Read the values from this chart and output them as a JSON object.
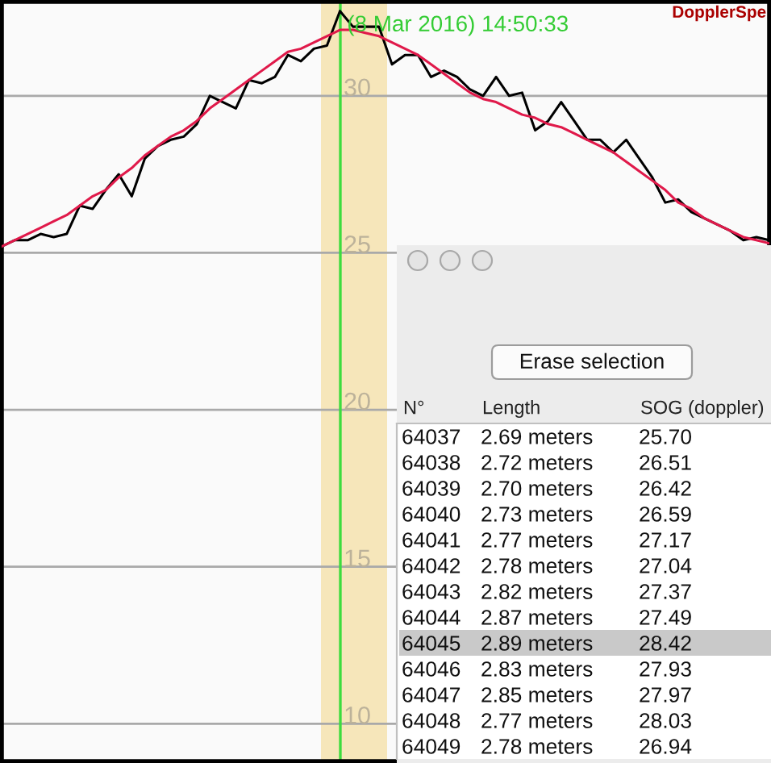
{
  "chart_data": [
    {
      "type": "line",
      "title": "DopplerSpe",
      "annotations": [
        "(8 Mar 2016) 14:50:33"
      ],
      "categories": [
        null,
        null,
        null,
        null,
        null,
        null,
        null,
        null,
        null,
        null,
        null,
        null,
        null,
        null,
        null,
        null,
        null,
        null,
        null,
        null,
        null,
        null,
        null,
        null,
        null,
        null,
        null,
        null,
        null,
        null,
        null,
        null,
        null,
        null,
        null,
        null,
        null,
        null,
        null,
        null,
        null,
        null,
        null,
        null,
        null,
        null,
        null,
        null,
        null,
        null,
        null,
        null,
        null,
        null,
        null,
        null,
        null,
        null,
        null,
        null
      ],
      "series": [
        {
          "color": "#000000",
          "values": [
            25.2,
            25.4,
            25.4,
            25.6,
            25.5,
            25.6,
            26.5,
            26.4,
            27.0,
            27.5,
            26.8,
            28.0,
            28.4,
            28.6,
            28.7,
            29.1,
            30.0,
            29.8,
            29.6,
            30.5,
            30.4,
            30.6,
            31.3,
            31.1,
            31.5,
            31.6,
            32.7,
            32.2,
            32.2,
            32.2,
            31.0,
            31.3,
            31.3,
            30.6,
            30.8,
            30.6,
            30.2,
            30.0,
            30.6,
            30.0,
            30.1,
            28.9,
            29.2,
            29.8,
            29.2,
            28.6,
            28.6,
            28.2,
            28.6,
            28.0,
            27.4,
            26.6,
            26.7,
            26.3,
            26.1,
            25.9,
            25.7,
            25.4,
            25.5,
            25.4
          ]
        },
        {
          "color": "#e0194a",
          "values": [
            25.2,
            25.4,
            25.6,
            25.8,
            26.0,
            26.2,
            26.5,
            26.8,
            27.0,
            27.4,
            27.7,
            28.1,
            28.4,
            28.7,
            28.9,
            29.2,
            29.6,
            29.9,
            30.2,
            30.5,
            30.8,
            31.1,
            31.4,
            31.5,
            31.7,
            31.9,
            32.1,
            32.1,
            32.0,
            31.9,
            31.7,
            31.5,
            31.3,
            31.0,
            30.7,
            30.4,
            30.1,
            29.9,
            29.8,
            29.6,
            29.4,
            29.3,
            29.1,
            29.0,
            28.8,
            28.6,
            28.4,
            28.2,
            27.9,
            27.6,
            27.3,
            27.0,
            26.6,
            26.4,
            26.1,
            25.9,
            25.7,
            25.5,
            25.4,
            25.3
          ]
        }
      ],
      "ylim": [
        8.8,
        33.0
      ],
      "yticks": [
        10,
        15,
        20,
        25,
        30
      ],
      "grid": "y",
      "tick_labels": "y"
    },
    {
      "type": "heatmap",
      "annotations": [
        "Erase selection"
      ],
      "ylabel": "N°",
      "categories": [
        "Length",
        "SOG (doppler)"
      ],
      "y_categories": [
        "64037",
        "64038",
        "64039",
        "64040",
        "64041",
        "64042",
        "64043",
        "64044",
        "64045",
        "64046",
        "64047",
        "64048",
        "64049"
      ],
      "cells": [
        [
          null,
          null
        ],
        [
          null,
          null
        ],
        [
          null,
          null
        ],
        [
          null,
          null
        ],
        [
          null,
          null
        ],
        [
          null,
          null
        ],
        [
          null,
          null
        ],
        [
          null,
          null
        ],
        [
          null,
          null
        ],
        [
          null,
          null
        ],
        [
          null,
          null
        ],
        [
          null,
          null
        ],
        [
          null,
          null
        ]
      ],
      "cell_labels": [
        [
          "2.69 meters",
          "25.70"
        ],
        [
          "2.72 meters",
          "26.51"
        ],
        [
          "2.70 meters",
          "26.42"
        ],
        [
          "2.73 meters",
          "26.59"
        ],
        [
          "2.77 meters",
          "27.17"
        ],
        [
          "2.78 meters",
          "27.04"
        ],
        [
          "2.82 meters",
          "27.37"
        ],
        [
          "2.87 meters",
          "27.49"
        ],
        [
          "2.89 meters",
          "28.42"
        ],
        [
          "2.83 meters",
          "27.93"
        ],
        [
          "2.85 meters",
          "27.97"
        ],
        [
          "2.77 meters",
          "28.03"
        ],
        [
          "2.78 meters",
          "26.94"
        ]
      ],
      "bands": [
        {
          "axis": "y",
          "from": "64045",
          "to": "64045",
          "color": "#c9c9c9"
        }
      ]
    }
  ]
}
